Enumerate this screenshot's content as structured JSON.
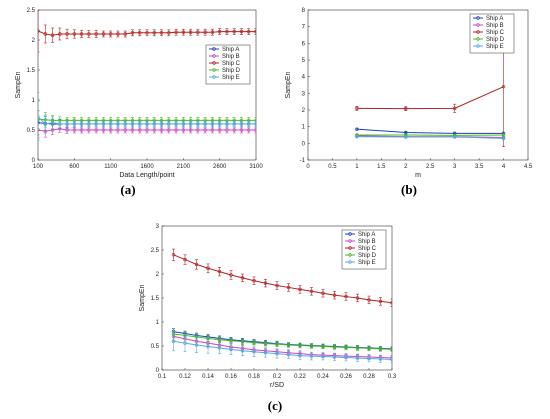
{
  "colors": {
    "Ship A": "#1f3fbf",
    "Ship B": "#cc44cc",
    "Ship C": "#b22222",
    "Ship D": "#44bb22",
    "Ship E": "#55aadd"
  },
  "chart_data": [
    {
      "id": "a",
      "type": "line",
      "caption": "(a)",
      "xlabel": "Data Length/point",
      "ylabel": "SampEn",
      "xlim": [
        100,
        3100
      ],
      "ylim": [
        0,
        2.5
      ],
      "xticks": [
        100,
        600,
        1100,
        1600,
        2100,
        2600,
        3100
      ],
      "yticks": [
        0,
        0.5,
        1,
        1.5,
        2,
        2.5
      ],
      "grid": false,
      "legend_position": "right",
      "x": [
        100,
        200,
        300,
        400,
        500,
        600,
        700,
        800,
        900,
        1000,
        1100,
        1200,
        1300,
        1400,
        1500,
        1600,
        1700,
        1800,
        1900,
        2000,
        2100,
        2200,
        2300,
        2400,
        2500,
        2600,
        2700,
        2800,
        2900,
        3000,
        3100
      ],
      "series": [
        {
          "name": "Ship A",
          "values": [
            0.62,
            0.61,
            0.6,
            0.6,
            0.6,
            0.6,
            0.6,
            0.6,
            0.6,
            0.6,
            0.6,
            0.6,
            0.6,
            0.6,
            0.6,
            0.6,
            0.6,
            0.6,
            0.6,
            0.6,
            0.6,
            0.6,
            0.6,
            0.6,
            0.6,
            0.6,
            0.6,
            0.6,
            0.6,
            0.6,
            0.6
          ],
          "err": [
            0.2,
            0.12,
            0.08,
            0.07,
            0.06,
            0.05,
            0.05,
            0.05,
            0.05,
            0.05,
            0.05,
            0.05,
            0.05,
            0.05,
            0.05,
            0.05,
            0.05,
            0.05,
            0.05,
            0.05,
            0.05,
            0.05,
            0.05,
            0.05,
            0.05,
            0.05,
            0.05,
            0.05,
            0.05,
            0.05,
            0.05
          ]
        },
        {
          "name": "Ship B",
          "values": [
            0.5,
            0.48,
            0.5,
            0.52,
            0.5,
            0.5,
            0.5,
            0.5,
            0.5,
            0.5,
            0.5,
            0.5,
            0.5,
            0.5,
            0.5,
            0.5,
            0.5,
            0.5,
            0.5,
            0.5,
            0.5,
            0.5,
            0.5,
            0.5,
            0.5,
            0.5,
            0.5,
            0.5,
            0.5,
            0.5,
            0.5
          ],
          "err": [
            0.15,
            0.1,
            0.08,
            0.06,
            0.06,
            0.05,
            0.05,
            0.05,
            0.05,
            0.05,
            0.05,
            0.05,
            0.05,
            0.05,
            0.05,
            0.05,
            0.05,
            0.05,
            0.05,
            0.05,
            0.05,
            0.05,
            0.05,
            0.05,
            0.05,
            0.05,
            0.05,
            0.05,
            0.05,
            0.05,
            0.05
          ]
        },
        {
          "name": "Ship C",
          "values": [
            2.15,
            2.1,
            2.08,
            2.1,
            2.1,
            2.1,
            2.1,
            2.1,
            2.1,
            2.1,
            2.1,
            2.1,
            2.1,
            2.12,
            2.12,
            2.12,
            2.12,
            2.12,
            2.12,
            2.13,
            2.13,
            2.13,
            2.13,
            2.13,
            2.13,
            2.14,
            2.14,
            2.14,
            2.14,
            2.14,
            2.14
          ],
          "err": [
            0.35,
            0.15,
            0.12,
            0.1,
            0.08,
            0.07,
            0.06,
            0.06,
            0.06,
            0.05,
            0.05,
            0.05,
            0.05,
            0.05,
            0.05,
            0.05,
            0.05,
            0.05,
            0.05,
            0.05,
            0.05,
            0.05,
            0.05,
            0.05,
            0.05,
            0.05,
            0.05,
            0.05,
            0.05,
            0.05,
            0.05
          ]
        },
        {
          "name": "Ship D",
          "values": [
            0.68,
            0.67,
            0.66,
            0.66,
            0.66,
            0.66,
            0.66,
            0.66,
            0.66,
            0.66,
            0.66,
            0.66,
            0.66,
            0.66,
            0.66,
            0.66,
            0.66,
            0.66,
            0.66,
            0.66,
            0.66,
            0.66,
            0.66,
            0.66,
            0.66,
            0.66,
            0.66,
            0.66,
            0.66,
            0.66,
            0.66
          ],
          "err": [
            0.3,
            0.12,
            0.08,
            0.06,
            0.05,
            0.05,
            0.05,
            0.05,
            0.05,
            0.05,
            0.05,
            0.05,
            0.05,
            0.05,
            0.05,
            0.05,
            0.05,
            0.05,
            0.05,
            0.05,
            0.05,
            0.05,
            0.05,
            0.05,
            0.05,
            0.05,
            0.05,
            0.05,
            0.05,
            0.05,
            0.05
          ]
        },
        {
          "name": "Ship E",
          "values": [
            0.72,
            0.6,
            0.62,
            0.6,
            0.6,
            0.6,
            0.6,
            0.6,
            0.6,
            0.6,
            0.6,
            0.6,
            0.6,
            0.6,
            0.6,
            0.6,
            0.6,
            0.6,
            0.6,
            0.6,
            0.6,
            0.6,
            0.6,
            0.6,
            0.6,
            0.6,
            0.6,
            0.6,
            0.6,
            0.6,
            0.6
          ],
          "err": [
            0.4,
            0.15,
            0.1,
            0.08,
            0.07,
            0.06,
            0.05,
            0.05,
            0.05,
            0.05,
            0.05,
            0.05,
            0.05,
            0.05,
            0.05,
            0.05,
            0.05,
            0.05,
            0.05,
            0.05,
            0.05,
            0.05,
            0.05,
            0.05,
            0.05,
            0.05,
            0.05,
            0.05,
            0.05,
            0.05,
            0.05
          ]
        }
      ]
    },
    {
      "id": "b",
      "type": "line",
      "caption": "(b)",
      "xlabel": "m",
      "ylabel": "SampEn",
      "xlim": [
        0,
        4.5
      ],
      "ylim": [
        -1,
        8
      ],
      "xticks": [
        0,
        0.5,
        1,
        1.5,
        2,
        2.5,
        3,
        3.5,
        4,
        4.5
      ],
      "yticks": [
        -1,
        0,
        1,
        2,
        3,
        4,
        5,
        6,
        7,
        8
      ],
      "grid": false,
      "legend_position": "top-right",
      "x": [
        1,
        2,
        3,
        4
      ],
      "series": [
        {
          "name": "Ship A",
          "values": [
            0.85,
            0.65,
            0.6,
            0.6
          ],
          "err": [
            0.05,
            0.05,
            0.05,
            0.05
          ]
        },
        {
          "name": "Ship B",
          "values": [
            0.45,
            0.4,
            0.4,
            0.35
          ],
          "err": [
            0.05,
            0.05,
            0.05,
            0.05
          ]
        },
        {
          "name": "Ship C",
          "values": [
            2.1,
            2.08,
            2.1,
            3.4
          ],
          "err": [
            0.12,
            0.12,
            0.25,
            3.6
          ]
        },
        {
          "name": "Ship D",
          "values": [
            0.5,
            0.5,
            0.48,
            0.5
          ],
          "err": [
            0.05,
            0.05,
            0.05,
            0.05
          ]
        },
        {
          "name": "Ship E",
          "values": [
            0.4,
            0.38,
            0.38,
            0.3
          ],
          "err": [
            0.05,
            0.05,
            0.05,
            0.05
          ]
        }
      ]
    },
    {
      "id": "c",
      "type": "line",
      "caption": "(c)",
      "xlabel": "r/SD",
      "ylabel": "SampEn",
      "xlim": [
        0.1,
        0.3
      ],
      "ylim": [
        0,
        3
      ],
      "xticks": [
        0.1,
        0.12,
        0.14,
        0.16,
        0.18,
        0.2,
        0.22,
        0.24,
        0.26,
        0.28,
        0.3
      ],
      "yticks": [
        0,
        0.5,
        1,
        1.5,
        2,
        2.5,
        3
      ],
      "grid": false,
      "legend_position": "top-right",
      "x": [
        0.11,
        0.12,
        0.13,
        0.14,
        0.15,
        0.16,
        0.17,
        0.18,
        0.19,
        0.2,
        0.21,
        0.22,
        0.23,
        0.24,
        0.25,
        0.26,
        0.27,
        0.28,
        0.29,
        0.3
      ],
      "series": [
        {
          "name": "Ship A",
          "values": [
            0.8,
            0.76,
            0.72,
            0.69,
            0.66,
            0.63,
            0.61,
            0.59,
            0.57,
            0.55,
            0.53,
            0.52,
            0.51,
            0.5,
            0.49,
            0.48,
            0.47,
            0.46,
            0.45,
            0.44
          ],
          "err": [
            0.06,
            0.05,
            0.05,
            0.05,
            0.05,
            0.05,
            0.05,
            0.05,
            0.05,
            0.05,
            0.04,
            0.04,
            0.04,
            0.04,
            0.04,
            0.04,
            0.04,
            0.04,
            0.04,
            0.04
          ]
        },
        {
          "name": "Ship B",
          "values": [
            0.7,
            0.65,
            0.6,
            0.56,
            0.52,
            0.48,
            0.45,
            0.42,
            0.4,
            0.38,
            0.36,
            0.34,
            0.32,
            0.31,
            0.3,
            0.29,
            0.28,
            0.27,
            0.26,
            0.25
          ],
          "err": [
            0.1,
            0.09,
            0.08,
            0.08,
            0.07,
            0.07,
            0.07,
            0.06,
            0.06,
            0.06,
            0.06,
            0.06,
            0.05,
            0.05,
            0.05,
            0.05,
            0.05,
            0.05,
            0.05,
            0.05
          ]
        },
        {
          "name": "Ship C",
          "values": [
            2.4,
            2.3,
            2.2,
            2.12,
            2.05,
            1.98,
            1.92,
            1.86,
            1.81,
            1.76,
            1.72,
            1.68,
            1.64,
            1.6,
            1.56,
            1.53,
            1.5,
            1.46,
            1.43,
            1.4
          ],
          "err": [
            0.12,
            0.1,
            0.1,
            0.09,
            0.09,
            0.09,
            0.08,
            0.08,
            0.08,
            0.08,
            0.08,
            0.08,
            0.08,
            0.08,
            0.08,
            0.08,
            0.08,
            0.08,
            0.08,
            0.08
          ]
        },
        {
          "name": "Ship D",
          "values": [
            0.75,
            0.72,
            0.69,
            0.66,
            0.63,
            0.61,
            0.59,
            0.57,
            0.55,
            0.54,
            0.52,
            0.51,
            0.5,
            0.49,
            0.48,
            0.47,
            0.46,
            0.45,
            0.44,
            0.43
          ],
          "err": [
            0.08,
            0.07,
            0.07,
            0.06,
            0.06,
            0.06,
            0.06,
            0.05,
            0.05,
            0.05,
            0.05,
            0.05,
            0.05,
            0.05,
            0.05,
            0.05,
            0.05,
            0.05,
            0.05,
            0.05
          ]
        },
        {
          "name": "Ship E",
          "values": [
            0.6,
            0.56,
            0.52,
            0.49,
            0.46,
            0.43,
            0.4,
            0.38,
            0.36,
            0.34,
            0.32,
            0.3,
            0.29,
            0.28,
            0.27,
            0.26,
            0.25,
            0.24,
            0.23,
            0.22
          ],
          "err": [
            0.2,
            0.18,
            0.16,
            0.14,
            0.12,
            0.11,
            0.1,
            0.1,
            0.09,
            0.09,
            0.08,
            0.08,
            0.08,
            0.07,
            0.07,
            0.07,
            0.07,
            0.07,
            0.07,
            0.07
          ]
        }
      ]
    }
  ]
}
